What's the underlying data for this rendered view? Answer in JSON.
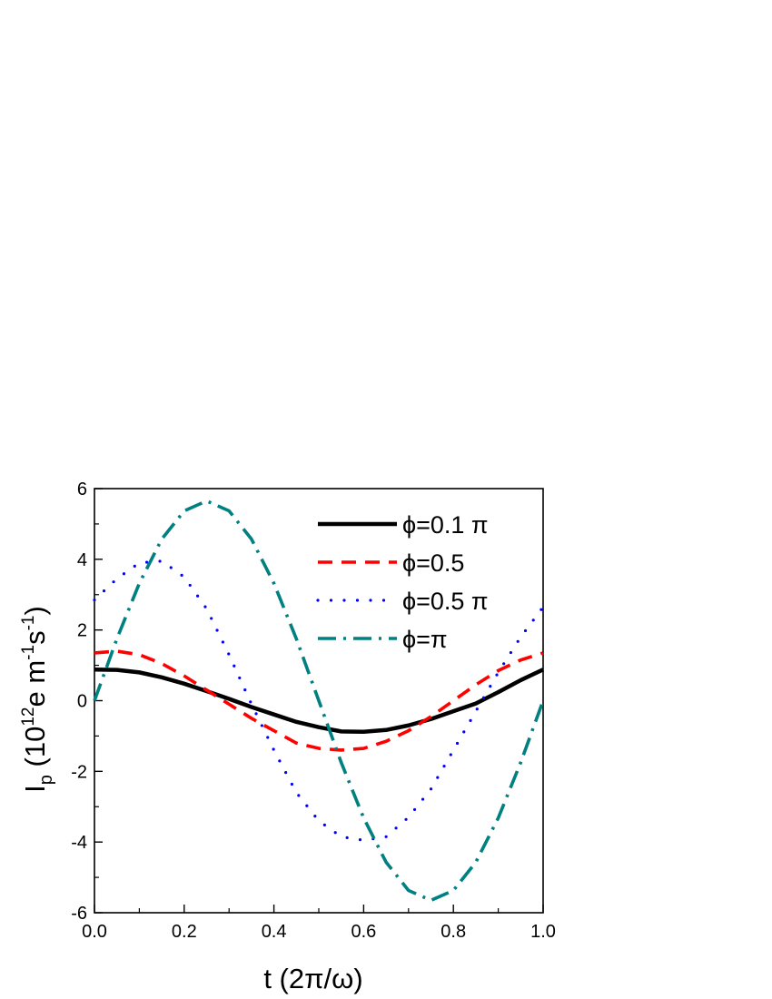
{
  "chart_data": {
    "type": "line",
    "title": "",
    "xlabel": "t (2π/ω)",
    "ylabel": {
      "main": "I",
      "subscript": "p",
      "unit_open": " (10",
      "exp1": "12",
      "unit_e_m": "e m",
      "exp2": "-1",
      "unit_s": "s",
      "exp3": "-1",
      "unit_close": ")"
    },
    "xlim": [
      0,
      1
    ],
    "ylim": [
      -6,
      6
    ],
    "xticks": [
      "0.0",
      "0.2",
      "0.4",
      "0.6",
      "0.8",
      "1.0"
    ],
    "yticks": [
      "-6",
      "-4",
      "-2",
      "0",
      "2",
      "4",
      "6"
    ],
    "grid": false,
    "legend_position": "top-right",
    "series": [
      {
        "name": "ϕ=0.1 π",
        "color": "#000000",
        "dash": "solid",
        "x": [
          0,
          0.05,
          0.1,
          0.15,
          0.2,
          0.25,
          0.3,
          0.35,
          0.4,
          0.45,
          0.5,
          0.55,
          0.6,
          0.65,
          0.7,
          0.75,
          0.8,
          0.85,
          0.9,
          0.95,
          1.0
        ],
        "y": [
          0.88,
          0.87,
          0.8,
          0.66,
          0.48,
          0.27,
          0.05,
          -0.18,
          -0.39,
          -0.6,
          -0.75,
          -0.87,
          -0.88,
          -0.83,
          -0.7,
          -0.52,
          -0.3,
          -0.08,
          0.24,
          0.58,
          0.88
        ]
      },
      {
        "name": "ϕ=0.5",
        "color": "#ff0000",
        "dash": "dash",
        "x": [
          0,
          0.05,
          0.1,
          0.15,
          0.2,
          0.25,
          0.3,
          0.35,
          0.4,
          0.45,
          0.5,
          0.55,
          0.6,
          0.65,
          0.7,
          0.75,
          0.8,
          0.85,
          0.9,
          0.95,
          1.0
        ],
        "y": [
          1.35,
          1.4,
          1.3,
          1.05,
          0.7,
          0.3,
          -0.1,
          -0.5,
          -0.85,
          -1.2,
          -1.35,
          -1.4,
          -1.35,
          -1.15,
          -0.85,
          -0.45,
          0.0,
          0.45,
          0.85,
          1.15,
          1.35
        ]
      },
      {
        "name": "ϕ=0.5 π",
        "color": "#0000ff",
        "dash": "dot",
        "x": [
          0,
          0.05,
          0.1,
          0.15,
          0.2,
          0.25,
          0.3,
          0.35,
          0.4,
          0.45,
          0.5,
          0.55,
          0.6,
          0.65,
          0.7,
          0.75,
          0.8,
          0.85,
          0.9,
          0.95,
          1.0
        ],
        "y": [
          2.85,
          3.45,
          3.9,
          3.95,
          3.5,
          2.6,
          1.3,
          -0.1,
          -1.4,
          -2.6,
          -3.4,
          -3.85,
          -3.95,
          -3.85,
          -3.3,
          -2.5,
          -1.4,
          -0.3,
          0.8,
          1.8,
          2.65
        ]
      },
      {
        "name": "ϕ=π",
        "color": "#008080",
        "dash": "dashdot",
        "x": [
          0,
          0.05,
          0.1,
          0.15,
          0.2,
          0.25,
          0.3,
          0.35,
          0.4,
          0.45,
          0.5,
          0.55,
          0.6,
          0.65,
          0.7,
          0.75,
          0.8,
          0.85,
          0.9,
          0.95,
          1.0
        ],
        "y": [
          0.0,
          1.75,
          3.32,
          4.57,
          5.37,
          5.65,
          5.37,
          4.57,
          3.32,
          1.75,
          0.0,
          -1.75,
          -3.32,
          -4.57,
          -5.37,
          -5.65,
          -5.37,
          -4.57,
          -3.32,
          -1.75,
          0.0
        ]
      }
    ]
  }
}
